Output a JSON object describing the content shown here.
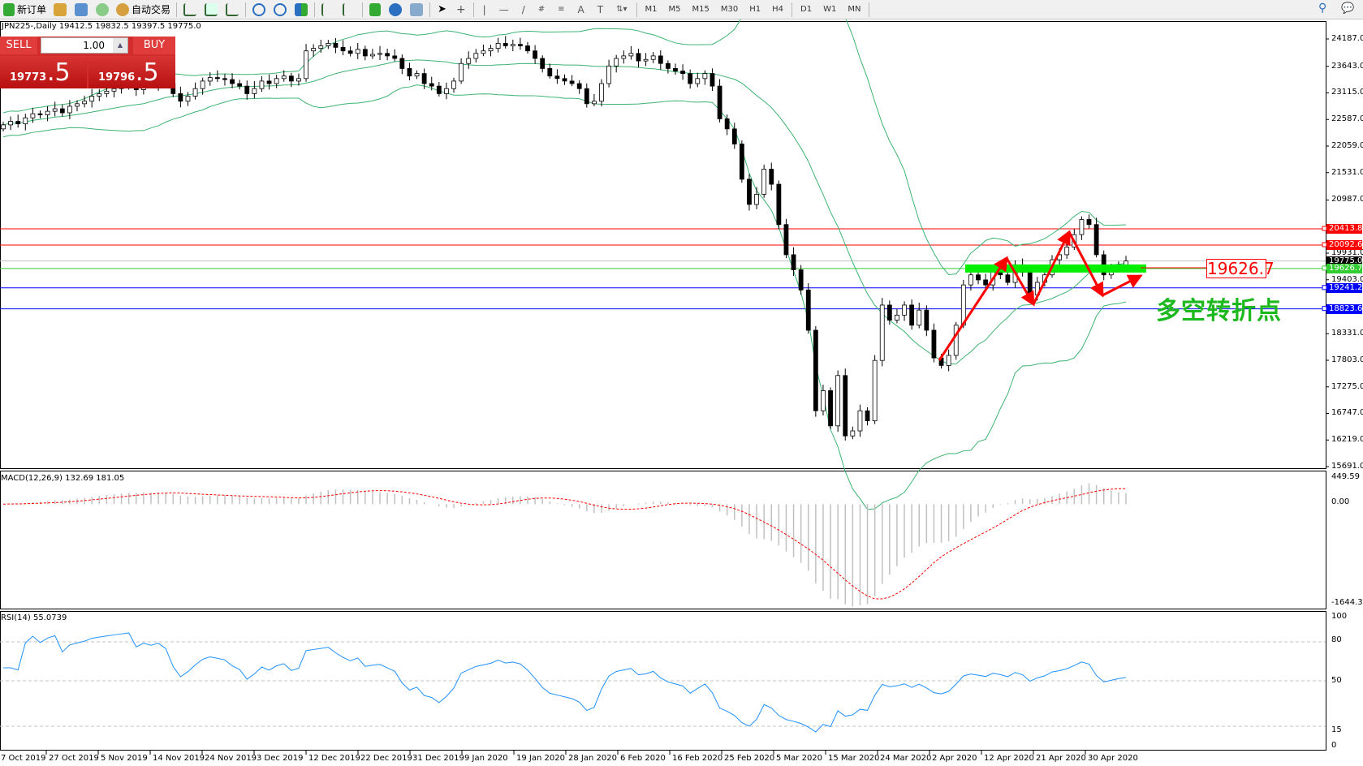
{
  "toolbar": {
    "new_order": "新订单",
    "auto_trading": "自动交易",
    "timeframes": [
      "M1",
      "M5",
      "M15",
      "M30",
      "H1",
      "H4",
      "D1",
      "W1",
      "MN"
    ]
  },
  "symbol_info": "JPN225-,Daily  19412.5 19832.5 19397.5 19775.0",
  "trade_panel": {
    "sell_label": "SELL",
    "buy_label": "BUY",
    "lot": "1.00",
    "sell_big": "19773",
    "sell_small": ".5",
    "buy_big": "19796",
    "buy_small": ".5"
  },
  "price_axis": [
    "24187.0",
    "23643.0",
    "23115.0",
    "22587.0",
    "22059.0",
    "21531.0",
    "20987.0",
    "19931.0",
    "19403.0",
    "18331.0",
    "17803.0",
    "17275.0",
    "16747.0",
    "16219.0",
    "15691.0"
  ],
  "levels": [
    {
      "value": "20413.8",
      "color": "#ff0000"
    },
    {
      "value": "20092.6",
      "color": "#ff0000"
    },
    {
      "value": "19775.0",
      "color": "#000000"
    },
    {
      "value": "19626.7",
      "color": "#33cc33"
    },
    {
      "value": "19241.2",
      "color": "#0000ff"
    },
    {
      "value": "18823.6",
      "color": "#0000ff"
    }
  ],
  "annotation": {
    "callout": "19626.7",
    "note": "多空转折点"
  },
  "macd": {
    "label": "MACD(12,26,9) 132.69 181.05",
    "axis": [
      "449.59",
      "0.00",
      "-1644.35"
    ]
  },
  "rsi": {
    "label": "RSI(14) 55.0739",
    "axis": [
      "100",
      "80",
      "50",
      "15",
      "0"
    ]
  },
  "dates": [
    "7 Oct 2019",
    "27 Oct 2019",
    "5 Nov 2019",
    "14 Nov 2019",
    "24 Nov 2019",
    "3 Dec 2019",
    "12 Dec 2019",
    "22 Dec 2019",
    "31 Dec 2019",
    "9 Jan 2020",
    "19 Jan 2020",
    "28 Jan 2020",
    "6 Feb 2020",
    "16 Feb 2020",
    "25 Feb 2020",
    "5 Mar 2020",
    "15 Mar 2020",
    "24 Mar 2020",
    "2 Apr 2020",
    "12 Apr 2020",
    "21 Apr 2020",
    "30 Apr 2020"
  ],
  "chart_data": {
    "type": "candlestick",
    "symbol": "JPN225-",
    "timeframe": "Daily",
    "ylim": [
      15691,
      24187
    ],
    "closes": [
      22480,
      22550,
      22500,
      22620,
      22700,
      22680,
      22750,
      22800,
      22720,
      22850,
      22900,
      22950,
      23050,
      23100,
      23150,
      23200,
      23250,
      23300,
      23180,
      23300,
      23280,
      23350,
      23300,
      23100,
      22950,
      23050,
      23200,
      23350,
      23420,
      23400,
      23380,
      23300,
      23250,
      23100,
      23200,
      23350,
      23300,
      23400,
      23450,
      23350,
      23400,
      23950,
      24000,
      24050,
      24100,
      24020,
      23950,
      23900,
      23980,
      23850,
      23880,
      23900,
      23850,
      23800,
      23600,
      23450,
      23500,
      23300,
      23250,
      23100,
      23200,
      23350,
      23700,
      23800,
      23900,
      23950,
      24000,
      24100,
      24050,
      24080,
      24050,
      23950,
      23800,
      23600,
      23450,
      23400,
      23350,
      23300,
      23200,
      22900,
      22950,
      23300,
      23650,
      23800,
      23850,
      23900,
      23750,
      23780,
      23850,
      23700,
      23600,
      23550,
      23500,
      23300,
      23400,
      23500,
      23250,
      22600,
      22400,
      22100,
      21400,
      20900,
      21100,
      21600,
      21300,
      20500,
      19900,
      19600,
      19200,
      18400,
      16800,
      17200,
      16500,
      17500,
      16300,
      16400,
      16800,
      16600,
      17800,
      18900,
      18600,
      18700,
      18900,
      18500,
      18800,
      18400,
      17850,
      17700,
      17900,
      18500,
      19300,
      19500,
      19400,
      19300,
      19600,
      19500,
      19350,
      19700,
      19550,
      19100,
      19350,
      19500,
      19800,
      19900,
      20050,
      20300,
      20600,
      20500,
      19900,
      19500,
      19600,
      19700,
      19775
    ],
    "indicators": [
      "Bollinger Bands",
      "MACD(12,26,9)",
      "RSI(14)"
    ],
    "colors": {
      "bands": "#3cb371",
      "macd_hist": "#c0c0c0",
      "macd_signal": "#ff0000",
      "rsi": "#1e90ff",
      "arrows": "#ff0000",
      "zone": "#00ee00"
    }
  }
}
